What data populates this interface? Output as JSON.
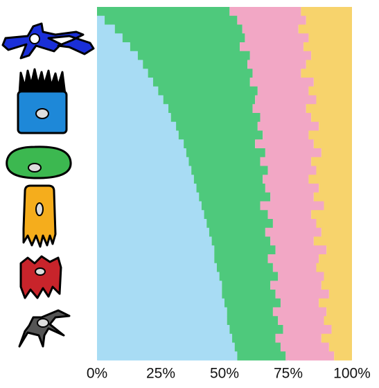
{
  "chart_data": {
    "type": "bar",
    "orientation": "horizontal",
    "stacked": true,
    "xlim": [
      0,
      100
    ],
    "xticks": [
      {
        "value": 0,
        "label": "0%"
      },
      {
        "value": 25,
        "label": "25%"
      },
      {
        "value": 50,
        "label": "50%"
      },
      {
        "value": 75,
        "label": "75%"
      },
      {
        "value": 100,
        "label": "100%"
      }
    ],
    "grid": false,
    "series": [
      {
        "color": "#a8dcf4",
        "values": [
          0,
          3,
          7,
          10,
          13,
          16,
          18,
          20,
          22,
          24,
          26,
          28,
          29,
          31,
          32,
          34,
          35,
          36,
          37,
          38,
          39,
          40,
          41,
          42,
          43,
          44,
          45,
          46,
          46,
          47,
          48,
          49,
          49,
          50,
          51,
          51,
          52,
          53,
          54,
          55
        ]
      },
      {
        "color": "#4ec97c",
        "values": [
          52,
          52,
          50,
          48,
          43,
          44,
          41,
          41,
          38,
          39,
          36,
          33,
          35,
          32,
          33,
          28,
          31,
          28,
          30,
          27,
          27,
          28,
          23,
          25,
          26,
          22,
          23,
          24,
          21,
          22,
          23,
          19,
          21,
          22,
          18,
          20,
          21,
          17,
          18,
          19
        ]
      },
      {
        "color": "#f2a7c5",
        "values": [
          28,
          27,
          22,
          25,
          25,
          24,
          23,
          19,
          25,
          20,
          24,
          21,
          20,
          24,
          18,
          23,
          22,
          20,
          19,
          18,
          21,
          17,
          25,
          17,
          17,
          22,
          17,
          20,
          20,
          17,
          18,
          20,
          21,
          15,
          21,
          18,
          19,
          18,
          19,
          19
        ]
      },
      {
        "color": "#f7d36c",
        "values": [
          20,
          18,
          21,
          17,
          19,
          16,
          18,
          20,
          15,
          17,
          14,
          18,
          16,
          13,
          17,
          15,
          12,
          16,
          14,
          17,
          13,
          15,
          11,
          16,
          14,
          12,
          15,
          10,
          13,
          14,
          11,
          12,
          9,
          13,
          10,
          11,
          8,
          12,
          9,
          7
        ]
      }
    ]
  }
}
